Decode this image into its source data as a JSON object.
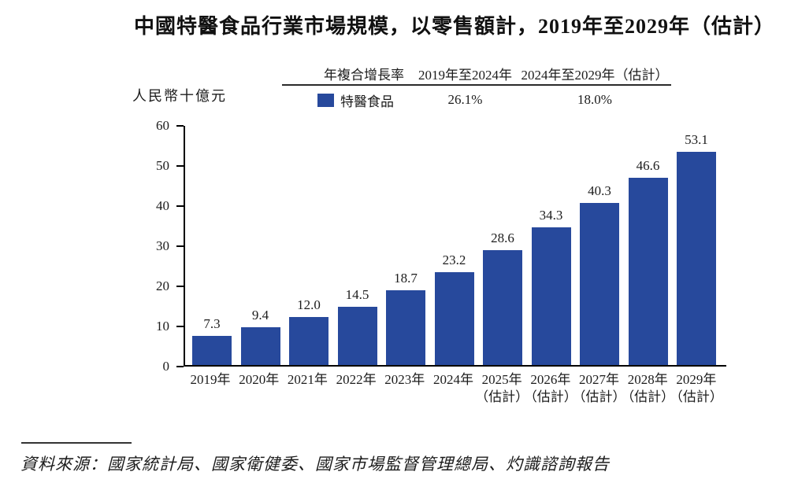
{
  "title": "中國特醫食品行業市場規模，以零售額計，2019年至2029年（估計）",
  "y_axis_unit": "人民幣十億元",
  "cagr_table": {
    "col_header_label": "年複合增長率",
    "col_header_period1": "2019年至2024年",
    "col_header_period2": "2024年至2029年（估計）",
    "series_label": "特醫食品",
    "cagr_period1": "26.1%",
    "cagr_period2": "18.0%"
  },
  "chart_data": {
    "type": "bar",
    "title": "中國特醫食品行業市場規模，以零售額計，2019年至2029年（估計）",
    "ylabel": "人民幣十億元",
    "ylim": [
      0,
      60
    ],
    "yticks": [
      0,
      10,
      20,
      30,
      40,
      50,
      60
    ],
    "grid": false,
    "legend_position": "top",
    "series_name": "特醫食品",
    "bar_color": "#27499C",
    "categories": [
      {
        "label": "2019年",
        "note": ""
      },
      {
        "label": "2020年",
        "note": ""
      },
      {
        "label": "2021年",
        "note": ""
      },
      {
        "label": "2022年",
        "note": ""
      },
      {
        "label": "2023年",
        "note": ""
      },
      {
        "label": "2024年",
        "note": ""
      },
      {
        "label": "2025年",
        "note": "（估計）"
      },
      {
        "label": "2026年",
        "note": "（估計）"
      },
      {
        "label": "2027年",
        "note": "（估計）"
      },
      {
        "label": "2028年",
        "note": "（估計）"
      },
      {
        "label": "2029年",
        "note": "（估計）"
      }
    ],
    "values": [
      7.3,
      9.4,
      12.0,
      14.5,
      18.7,
      23.2,
      28.6,
      34.3,
      40.3,
      46.6,
      53.1
    ],
    "cagr": [
      {
        "period": "2019年至2024年",
        "value": "26.1%"
      },
      {
        "period": "2024年至2029年（估計）",
        "value": "18.0%"
      }
    ]
  },
  "source": "資料來源：國家統計局、國家衛健委、國家市場監督管理總局、灼識諮詢報告"
}
